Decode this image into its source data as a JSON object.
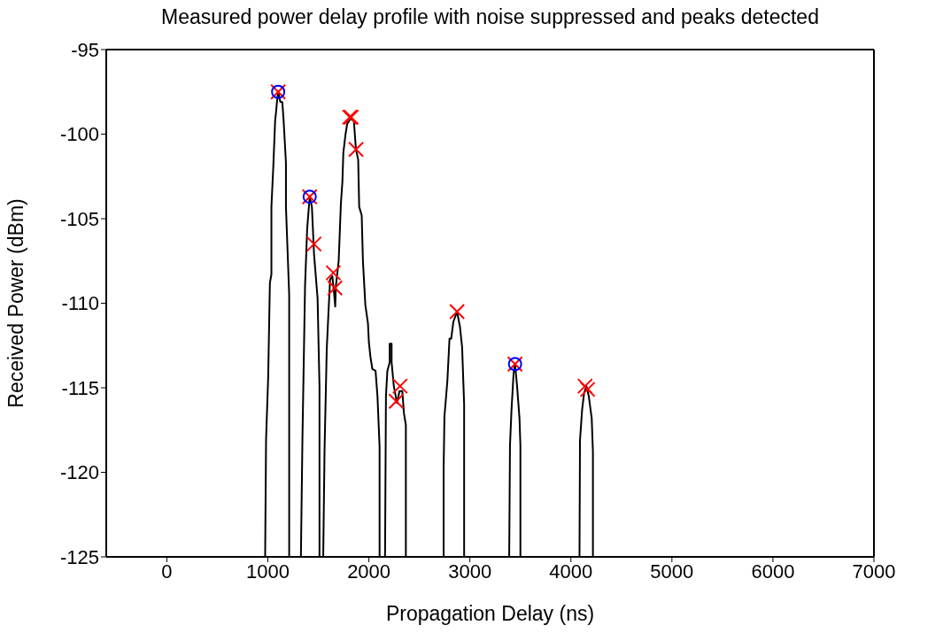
{
  "chart_data": {
    "type": "line",
    "title": "Measured power delay profile with noise suppressed and peaks detected",
    "xlabel": "Propagation Delay (ns)",
    "ylabel": "Received Power (dBm)",
    "xlim": [
      -600,
      7000
    ],
    "xticks": [
      0,
      1000,
      2000,
      3000,
      4000,
      5000,
      6000,
      7000
    ],
    "ylim": [
      -125,
      -95
    ],
    "yticks": [
      -125,
      -120,
      -115,
      -110,
      -105,
      -100,
      -95
    ],
    "series": [
      {
        "color": "#000000",
        "marker": "none",
        "x": [
          973,
          982,
          1003,
          1020,
          1035,
          1035,
          1054,
          1072,
          1081,
          1090,
          1102,
          1124,
          1143,
          1155,
          1179,
          1179,
          1211,
          1211,
          1327,
          1342,
          1368,
          1389,
          1414,
          1436,
          1457,
          1492,
          1511,
          1511,
          1548,
          1561,
          1583,
          1598,
          1616,
          1638,
          1654,
          1667,
          1673,
          1701,
          1723,
          1738,
          1747,
          1769,
          1785,
          1817,
          1851,
          1872,
          1894,
          1904,
          1929,
          1941,
          1965,
          1991,
          2000,
          2016,
          2035,
          2066,
          2085,
          2106,
          2106,
          2160,
          2169,
          2183,
          2206,
          2206,
          2225,
          2225,
          2247,
          2278,
          2303,
          2331,
          2347,
          2366,
          2366,
          2740,
          2740,
          2748,
          2777,
          2798,
          2815,
          2836,
          2873,
          2902,
          2923,
          2943,
          2943,
          3389,
          3397,
          3412,
          3432,
          3447,
          3467,
          3491,
          3500,
          3500,
          4085,
          4090,
          4111,
          4131,
          4154,
          4177,
          4206,
          4218,
          4218
        ],
        "values": [
          -125,
          -118.1,
          -114.4,
          -108.8,
          -108.3,
          -104.3,
          -101.9,
          -99.2,
          -98.7,
          -98.1,
          -97.5,
          -98.1,
          -98.1,
          -99.1,
          -101.7,
          -104.3,
          -109.5,
          -125,
          -125,
          -118.1,
          -109,
          -105.6,
          -103.7,
          -104.3,
          -107.1,
          -109.7,
          -114.9,
          -125,
          -125,
          -118.7,
          -112.7,
          -110.8,
          -108.6,
          -108.4,
          -109.3,
          -110.2,
          -109,
          -107.5,
          -104.1,
          -102.8,
          -101.1,
          -100,
          -99.4,
          -99.1,
          -99.2,
          -100.9,
          -101.5,
          -104.3,
          -104.8,
          -107.5,
          -110.1,
          -111.2,
          -112.3,
          -113.2,
          -113.9,
          -114,
          -115.5,
          -118.5,
          -125,
          -125,
          -115.5,
          -114,
          -113.5,
          -112.4,
          -112.4,
          -113.5,
          -114.9,
          -115.9,
          -115.2,
          -115.2,
          -116.5,
          -117.2,
          -125,
          -125,
          -119.8,
          -116.7,
          -114.6,
          -112.1,
          -112.1,
          -111.1,
          -110.5,
          -111.4,
          -112.6,
          -116,
          -125,
          -125,
          -118.4,
          -116.3,
          -114.2,
          -113.6,
          -114.9,
          -116.8,
          -118.4,
          -125,
          -125,
          -118.1,
          -116.3,
          -115.3,
          -114.9,
          -115.5,
          -116.8,
          -118.8,
          -125
        ]
      },
      {
        "type": "scatter",
        "color": "#ff0000",
        "marker": "cross",
        "x": [
          1102,
          1414,
          1457,
          1648,
          1664,
          1810,
          1825,
          1873,
          2271,
          2309,
          2873,
          3447,
          4140,
          4165
        ],
        "values": [
          -97.5,
          -103.7,
          -106.5,
          -108.2,
          -109.1,
          -99,
          -99,
          -100.9,
          -115.8,
          -114.9,
          -110.5,
          -113.6,
          -114.9,
          -115.1
        ]
      },
      {
        "type": "scatter",
        "color": "#0000ff",
        "marker": "circle",
        "x": [
          1102,
          1414,
          3447
        ],
        "values": [
          -97.5,
          -103.7,
          -113.6
        ]
      }
    ]
  }
}
